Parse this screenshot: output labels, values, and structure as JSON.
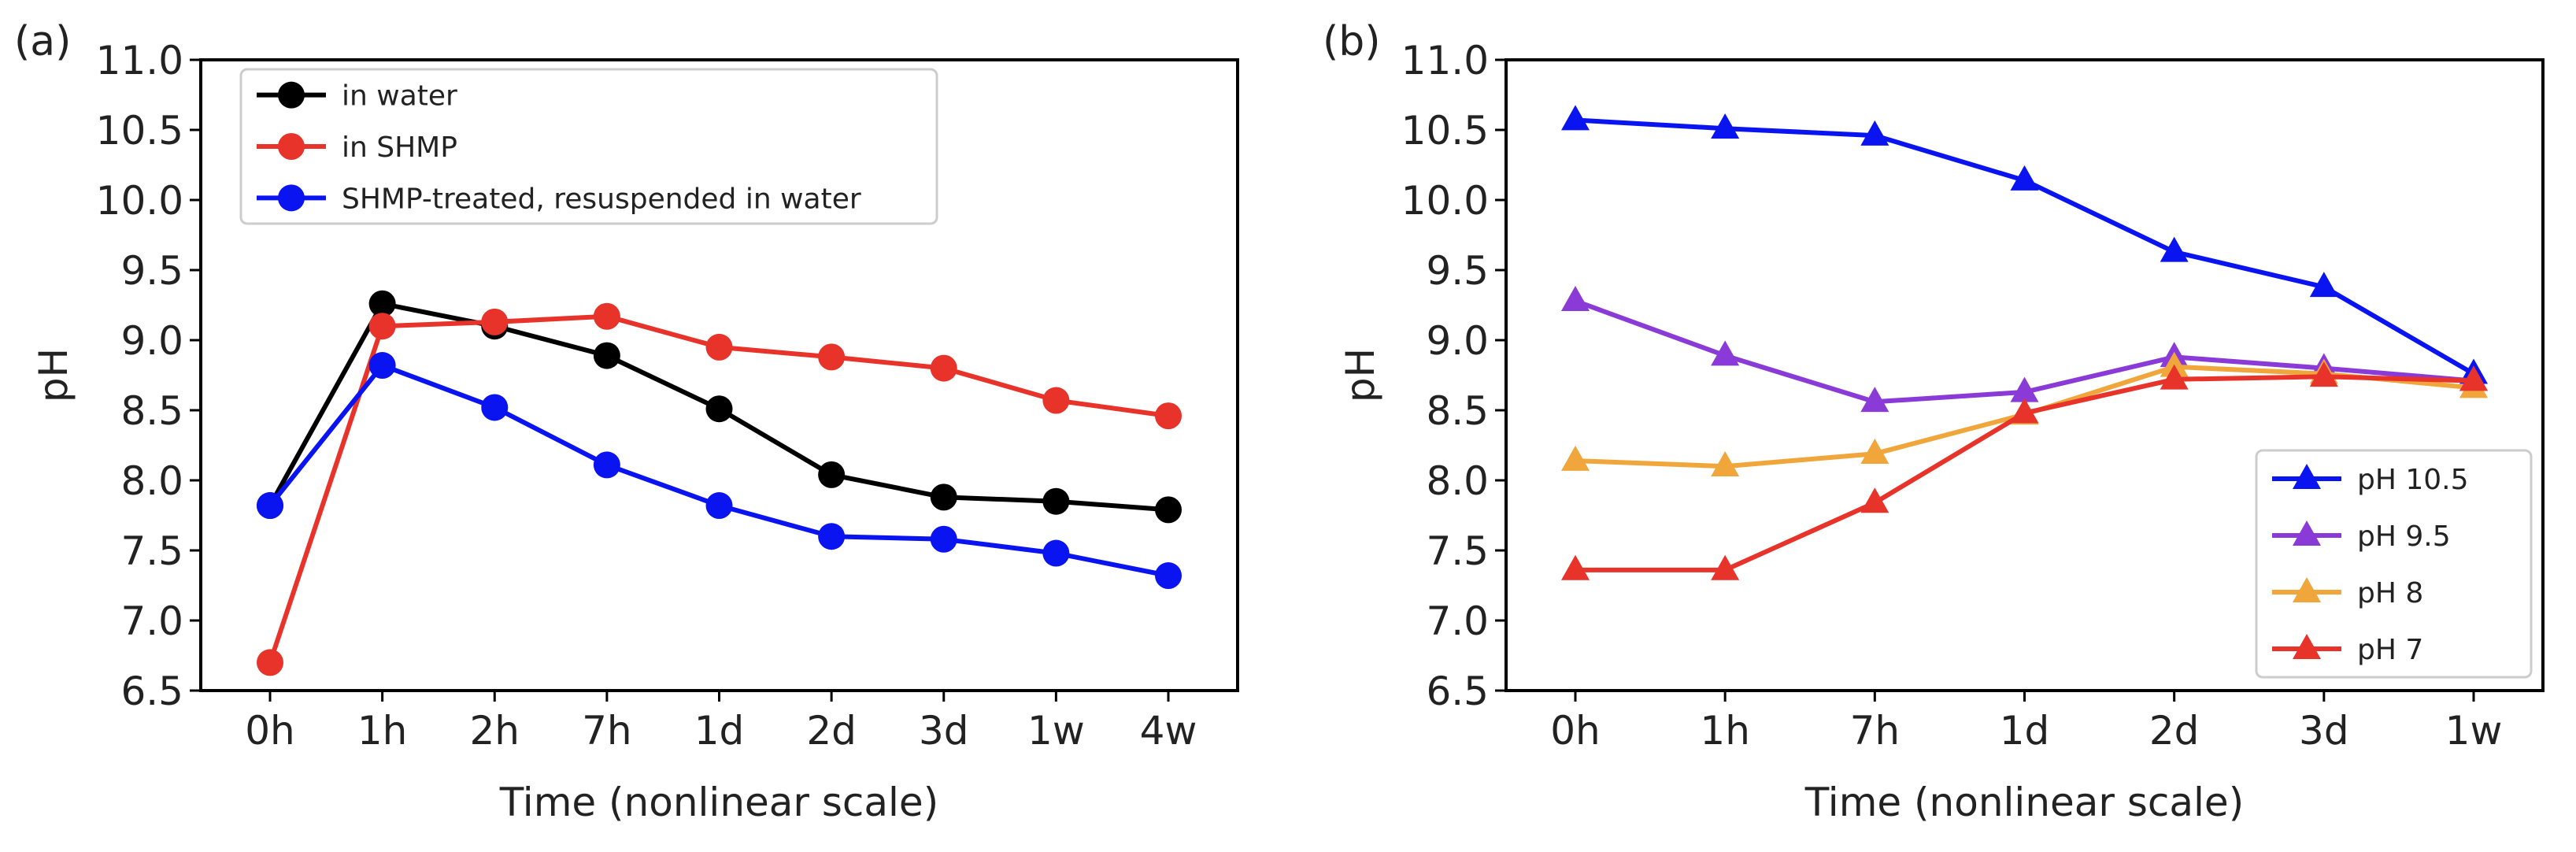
{
  "chart_data": [
    {
      "panel_label": "(a)",
      "type": "line",
      "marker": "circle",
      "categories": [
        "0h",
        "1h",
        "2h",
        "7h",
        "1d",
        "2d",
        "3d",
        "1w",
        "4w"
      ],
      "xlabel": "Time (nonlinear scale)",
      "ylabel": "pH",
      "ylim": [
        6.5,
        11.0
      ],
      "yticks": [
        "6.5",
        "7.0",
        "7.5",
        "8.0",
        "8.5",
        "9.0",
        "9.5",
        "10.0",
        "10.5",
        "11.0"
      ],
      "legend_position": "top-left",
      "series": [
        {
          "name": "in water",
          "color": "#000000",
          "values": [
            7.82,
            9.26,
            9.1,
            8.89,
            8.51,
            8.04,
            7.88,
            7.85,
            7.79
          ]
        },
        {
          "name": "in SHMP",
          "color": "#e8332a",
          "values": [
            6.7,
            9.1,
            9.13,
            9.17,
            8.95,
            8.88,
            8.8,
            8.57,
            8.46
          ]
        },
        {
          "name": "SHMP-treated, resuspended in water",
          "color": "#0a14f0",
          "values": [
            7.82,
            8.82,
            8.52,
            8.11,
            7.82,
            7.6,
            7.58,
            7.48,
            7.32
          ]
        }
      ]
    },
    {
      "panel_label": "(b)",
      "type": "line",
      "marker": "triangle",
      "categories": [
        "0h",
        "1h",
        "7h",
        "1d",
        "2d",
        "3d",
        "1w"
      ],
      "xlabel": "Time (nonlinear scale)",
      "ylabel": "pH",
      "ylim": [
        6.5,
        11.0
      ],
      "yticks": [
        "6.5",
        "7.0",
        "7.5",
        "8.0",
        "8.5",
        "9.0",
        "9.5",
        "10.0",
        "10.5",
        "11.0"
      ],
      "legend_position": "bottom-right",
      "series": [
        {
          "name": "pH 10.5",
          "color": "#0a14f0",
          "values": [
            10.57,
            10.51,
            10.46,
            10.14,
            9.63,
            9.38,
            8.76
          ]
        },
        {
          "name": "pH 9.5",
          "color": "#8a3ad6",
          "values": [
            9.28,
            8.89,
            8.56,
            8.63,
            8.88,
            8.8,
            8.71
          ]
        },
        {
          "name": "pH 8",
          "color": "#f0a63a",
          "values": [
            8.14,
            8.1,
            8.19,
            8.47,
            8.81,
            8.76,
            8.66
          ]
        },
        {
          "name": "pH 7",
          "color": "#e8332a",
          "values": [
            7.36,
            7.36,
            7.84,
            8.48,
            8.72,
            8.74,
            8.71
          ]
        }
      ]
    }
  ]
}
